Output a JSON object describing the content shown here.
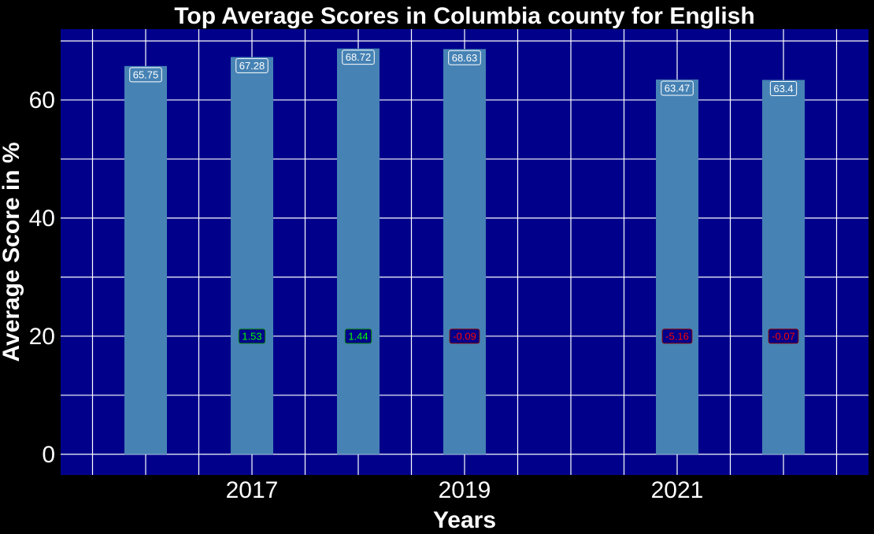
{
  "chart_data": {
    "type": "bar",
    "title": "Top Average Scores in Columbia county for English",
    "xlabel": "Years",
    "ylabel": "Average Score in %",
    "x": [
      2016,
      2017,
      2018,
      2019,
      2021,
      2022
    ],
    "values": [
      65.75,
      67.28,
      68.72,
      68.63,
      63.47,
      63.4
    ],
    "value_labels": [
      "65.75",
      "67.28",
      "68.72",
      "68.63",
      "63.47",
      "63.4"
    ],
    "changes": [
      {
        "x": 2017,
        "value": 1.53,
        "label": "1.53"
      },
      {
        "x": 2018,
        "value": 1.44,
        "label": "1.44"
      },
      {
        "x": 2019,
        "value": -0.09,
        "label": "-0.09"
      },
      {
        "x": 2021,
        "value": -5.16,
        "label": "-5.16"
      },
      {
        "x": 2022,
        "value": -0.07,
        "label": "-0.07"
      }
    ],
    "change_label_y": 20,
    "xlim": [
      2015.2,
      2022.8
    ],
    "ylim": [
      -3.5,
      72
    ],
    "x_ticks": [
      2017,
      2019,
      2021
    ],
    "y_ticks": [
      0,
      20,
      40,
      60
    ],
    "grid": true,
    "colors": {
      "background": "#000000",
      "panel": "#00008b",
      "bar": "#4682b4",
      "grid": "#ffffff",
      "positive_text": "#00ff00",
      "negative_text": "#ff0000"
    }
  }
}
